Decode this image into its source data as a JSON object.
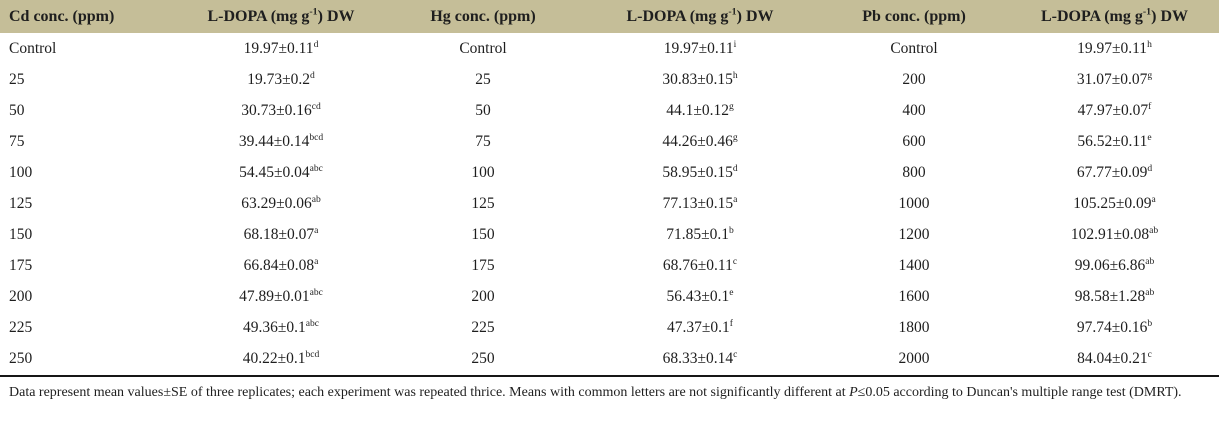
{
  "colors": {
    "header_bg": "#c5be98",
    "text": "#1e1e1e",
    "rule": "#161616"
  },
  "table": {
    "headers": {
      "cd_conc": "Cd conc. (ppm)",
      "ldopa_pre": "L-DOPA (mg g",
      "ldopa_sup": "-1",
      "ldopa_post": ") DW",
      "hg_conc": "Hg conc. (ppm)",
      "pb_conc": "Pb conc. (ppm)"
    },
    "rows": [
      {
        "cd_conc": "Control",
        "cd_value": "19.97±0.11",
        "cd_sig": "d",
        "hg_conc": "Control",
        "hg_value": "19.97±0.11",
        "hg_sig": "i",
        "pb_conc": "Control",
        "pb_value": "19.97±0.11",
        "pb_sig": "h"
      },
      {
        "cd_conc": "25",
        "cd_value": "19.73±0.2",
        "cd_sig": "d",
        "hg_conc": "25",
        "hg_value": "30.83±0.15",
        "hg_sig": "h",
        "pb_conc": "200",
        "pb_value": "31.07±0.07",
        "pb_sig": "g"
      },
      {
        "cd_conc": "50",
        "cd_value": "30.73±0.16",
        "cd_sig": "cd",
        "hg_conc": "50",
        "hg_value": "44.1±0.12",
        "hg_sig": "g",
        "pb_conc": "400",
        "pb_value": "47.97±0.07",
        "pb_sig": "f"
      },
      {
        "cd_conc": "75",
        "cd_value": "39.44±0.14",
        "cd_sig": "bcd",
        "hg_conc": "75",
        "hg_value": "44.26±0.46",
        "hg_sig": "g",
        "pb_conc": "600",
        "pb_value": "56.52±0.11",
        "pb_sig": "e"
      },
      {
        "cd_conc": "100",
        "cd_value": "54.45±0.04",
        "cd_sig": "abc",
        "hg_conc": "100",
        "hg_value": "58.95±0.15",
        "hg_sig": "d",
        "pb_conc": "800",
        "pb_value": "67.77±0.09",
        "pb_sig": "d"
      },
      {
        "cd_conc": "125",
        "cd_value": "63.29±0.06",
        "cd_sig": "ab",
        "hg_conc": "125",
        "hg_value": "77.13±0.15",
        "hg_sig": "a",
        "pb_conc": "1000",
        "pb_value": "105.25±0.09",
        "pb_sig": "a"
      },
      {
        "cd_conc": "150",
        "cd_value": "68.18±0.07",
        "cd_sig": "a",
        "hg_conc": "150",
        "hg_value": "71.85±0.1",
        "hg_sig": "b",
        "pb_conc": "1200",
        "pb_value": "102.91±0.08",
        "pb_sig": "ab"
      },
      {
        "cd_conc": "175",
        "cd_value": "66.84±0.08",
        "cd_sig": "a",
        "hg_conc": "175",
        "hg_value": "68.76±0.11",
        "hg_sig": "c",
        "pb_conc": "1400",
        "pb_value": "99.06±6.86",
        "pb_sig": "ab"
      },
      {
        "cd_conc": "200",
        "cd_value": "47.89±0.01",
        "cd_sig": "abc",
        "hg_conc": "200",
        "hg_value": "56.43±0.1",
        "hg_sig": "e",
        "pb_conc": "1600",
        "pb_value": "98.58±1.28",
        "pb_sig": "ab"
      },
      {
        "cd_conc": "225",
        "cd_value": "49.36±0.1",
        "cd_sig": "abc",
        "hg_conc": "225",
        "hg_value": "47.37±0.1",
        "hg_sig": "f",
        "pb_conc": "1800",
        "pb_value": "97.74±0.16",
        "pb_sig": "b"
      },
      {
        "cd_conc": "250",
        "cd_value": "40.22±0.1",
        "cd_sig": "bcd",
        "hg_conc": "250",
        "hg_value": "68.33±0.14",
        "hg_sig": "c",
        "pb_conc": "2000",
        "pb_value": "84.04±0.21",
        "pb_sig": "c"
      }
    ]
  },
  "footnote": {
    "pre": "Data represent mean values±SE of three replicates; each experiment was repeated thrice. Means with common letters are not significantly different at ",
    "italic": "P",
    "post": "≤0.05 according to  Duncan's multiple range test (DMRT)."
  }
}
